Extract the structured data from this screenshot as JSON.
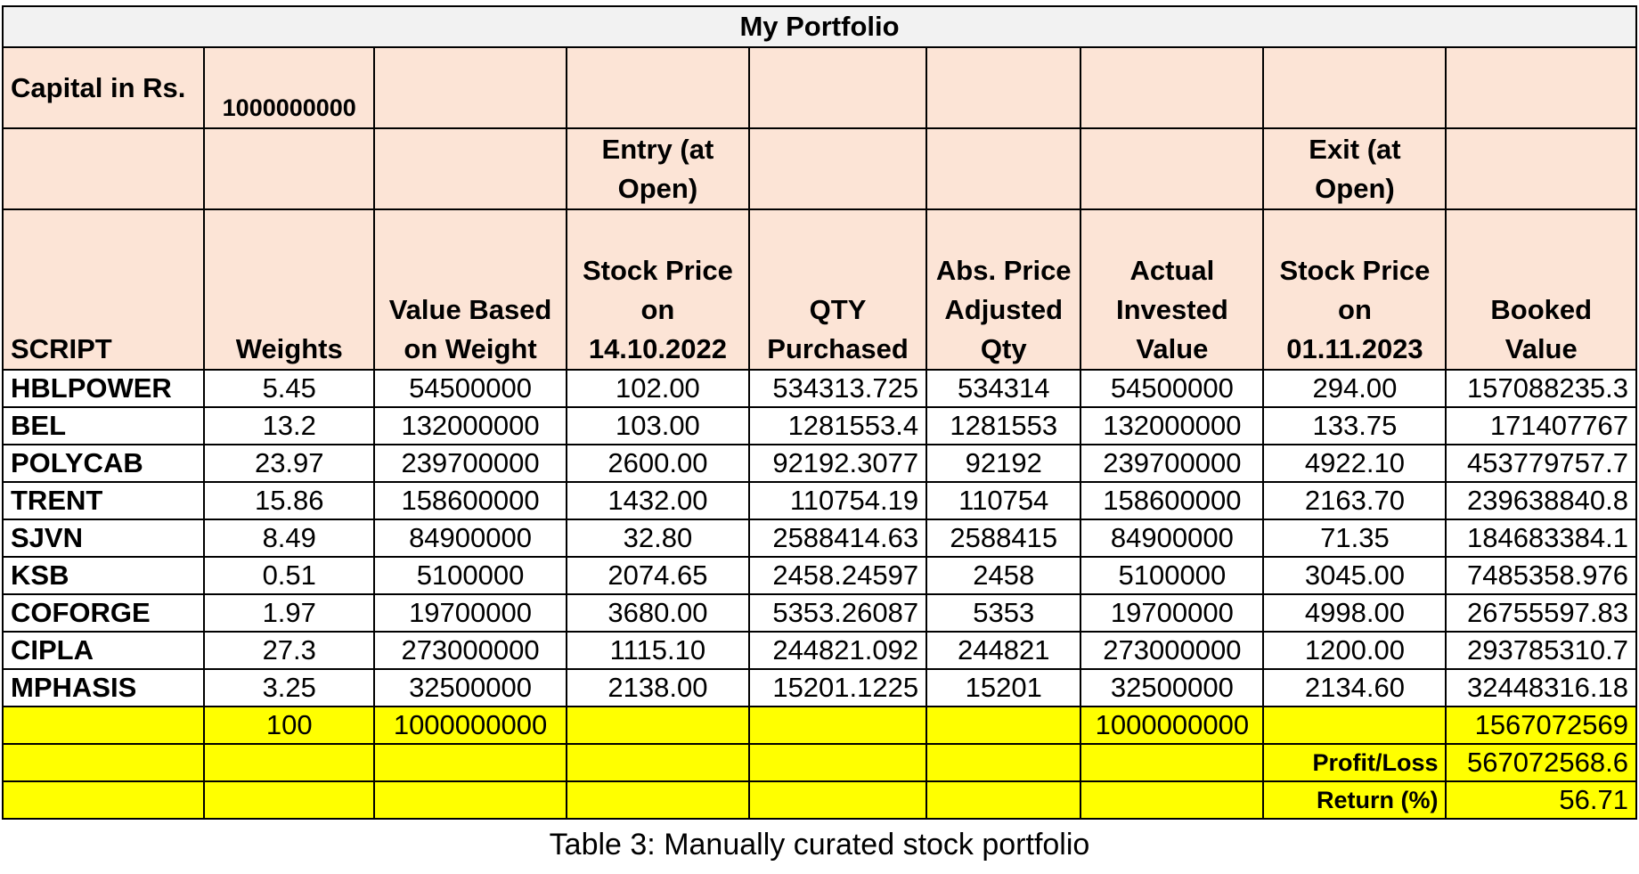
{
  "title": "My Portfolio",
  "capital": {
    "label": "Capital in Rs.",
    "value": "1000000000"
  },
  "entry_label": "Entry (at Open)",
  "exit_label": "Exit (at Open)",
  "columns": [
    "SCRIPT",
    "Weights",
    "Value Based on Weight",
    "Stock Price on 14.10.2022",
    "QTY Purchased",
    "Abs. Price Adjusted Qty",
    "Actual Invested Value",
    "Stock Price on 01.11.2023",
    "Booked Value"
  ],
  "rows": [
    [
      "HBLPOWER",
      "5.45",
      "54500000",
      "102.00",
      "534313.725",
      "534314",
      "54500000",
      "294.00",
      "157088235.3"
    ],
    [
      "BEL",
      "13.2",
      "132000000",
      "103.00",
      "1281553.4",
      "1281553",
      "132000000",
      "133.75",
      "171407767"
    ],
    [
      "POLYCAB",
      "23.97",
      "239700000",
      "2600.00",
      "92192.3077",
      "92192",
      "239700000",
      "4922.10",
      "453779757.7"
    ],
    [
      "TRENT",
      "15.86",
      "158600000",
      "1432.00",
      "110754.19",
      "110754",
      "158600000",
      "2163.70",
      "239638840.8"
    ],
    [
      "SJVN",
      "8.49",
      "84900000",
      "32.80",
      "2588414.63",
      "2588415",
      "84900000",
      "71.35",
      "184683384.1"
    ],
    [
      "KSB",
      "0.51",
      "5100000",
      "2074.65",
      "2458.24597",
      "2458",
      "5100000",
      "3045.00",
      "7485358.976"
    ],
    [
      "COFORGE",
      "1.97",
      "19700000",
      "3680.00",
      "5353.26087",
      "5353",
      "19700000",
      "4998.00",
      "26755597.83"
    ],
    [
      "CIPLA",
      "27.3",
      "273000000",
      "1115.10",
      "244821.092",
      "244821",
      "273000000",
      "1200.00",
      "293785310.7"
    ],
    [
      "MPHASIS",
      "3.25",
      "32500000",
      "2138.00",
      "15201.1225",
      "15201",
      "32500000",
      "2134.60",
      "32448316.18"
    ]
  ],
  "totals": {
    "weights": "100",
    "value_based": "1000000000",
    "invested": "1000000000",
    "booked": "1567072569"
  },
  "profit_loss": {
    "label": "Profit/Loss",
    "value": "567072568.6"
  },
  "return_pct": {
    "label": "Return (%)",
    "value": "56.71"
  },
  "caption": "Table 3: Manually curated stock portfolio",
  "colors": {
    "header_fill": "#fce4d6",
    "total_fill": "#ffff00",
    "title_fill": "#f2f2f2"
  }
}
